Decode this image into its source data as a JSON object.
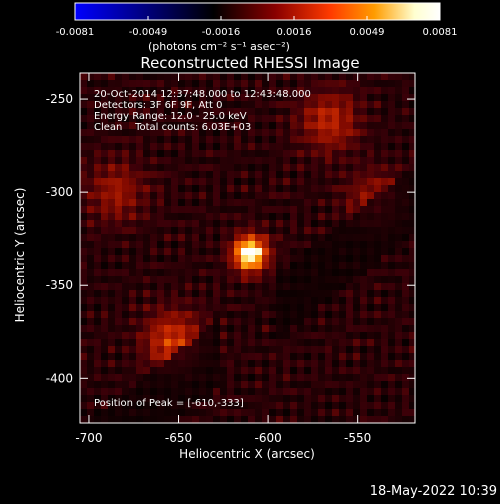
{
  "colorbar": {
    "tick_labels": [
      "-0.0081",
      "-0.0049",
      "-0.0016",
      "0.0016",
      "0.0049",
      "0.0081"
    ],
    "units_label": "(photons cm⁻² s⁻¹ asec⁻²)",
    "colors": [
      "#0000ff",
      "#000000",
      "#8a0000",
      "#ff3a00",
      "#ff9c00",
      "#ffffd0",
      "#ffffff"
    ]
  },
  "title": "Reconstructed RHESSI Image",
  "annotation": {
    "line1": "20-Oct-2014 12:37:48.000 to 12:43:48.000",
    "line2": "Detectors: 3F 6F 9F, Att 0",
    "line3": "Energy Range: 12.0 - 25.0 keV",
    "line4": "Clean    Total counts: 6.03E+03",
    "peak": "Position of Peak = [-610,-333]"
  },
  "axes": {
    "xlabel": "Heliocentric X (arcsec)",
    "ylabel": "Heliocentric Y (arcsec)",
    "xlim": [
      -705,
      -518
    ],
    "ylim": [
      -236,
      -424
    ],
    "xticks": [
      -700,
      -650,
      -600,
      -550
    ],
    "yticks": [
      -250,
      -300,
      -350,
      -400
    ]
  },
  "peak_position": [
    -610,
    -333
  ],
  "sources": [
    {
      "x": -610,
      "y": -333,
      "strength": 1.0
    },
    {
      "x": -653,
      "y": -380,
      "strength": 0.45
    },
    {
      "x": -566,
      "y": -262,
      "strength": 0.38
    },
    {
      "x": -540,
      "y": -304,
      "strength": 0.28
    },
    {
      "x": -685,
      "y": -300,
      "strength": 0.3
    }
  ],
  "timestamp": "18-May-2022 10:39"
}
